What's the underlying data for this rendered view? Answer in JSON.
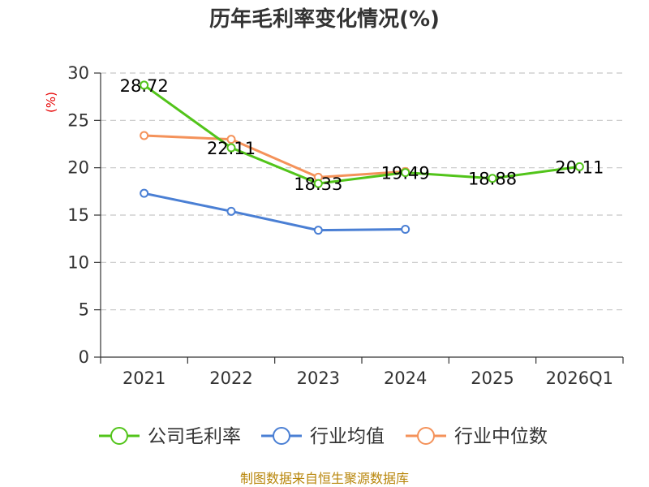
{
  "chart_data": {
    "type": "line",
    "title": "历年毛利率变化情况(%)",
    "ylabel": "(%)",
    "xlabel": "",
    "ylim": [
      0,
      30
    ],
    "yticks": [
      0,
      5,
      10,
      15,
      20,
      25,
      30
    ],
    "grid": true,
    "categories": [
      "2021",
      "2022",
      "2023",
      "2024",
      "2025",
      "2026Q1"
    ],
    "series": [
      {
        "name": "公司毛利率",
        "color": "#52c41a",
        "values": [
          28.72,
          22.11,
          18.33,
          19.49,
          18.88,
          20.11
        ],
        "labels": [
          "28.72",
          "22.11",
          "18.33",
          "19.49",
          "18.88",
          "20.11"
        ]
      },
      {
        "name": "行业均值",
        "color": "#4a7fd4",
        "values": [
          17.3,
          15.4,
          13.4,
          13.5,
          null,
          null
        ]
      },
      {
        "name": "行业中位数",
        "color": "#f4925a",
        "values": [
          23.4,
          23.0,
          19.0,
          19.6,
          null,
          null
        ]
      }
    ],
    "legend_position": "bottom",
    "source": "制图数据来自恒生聚源数据库"
  }
}
